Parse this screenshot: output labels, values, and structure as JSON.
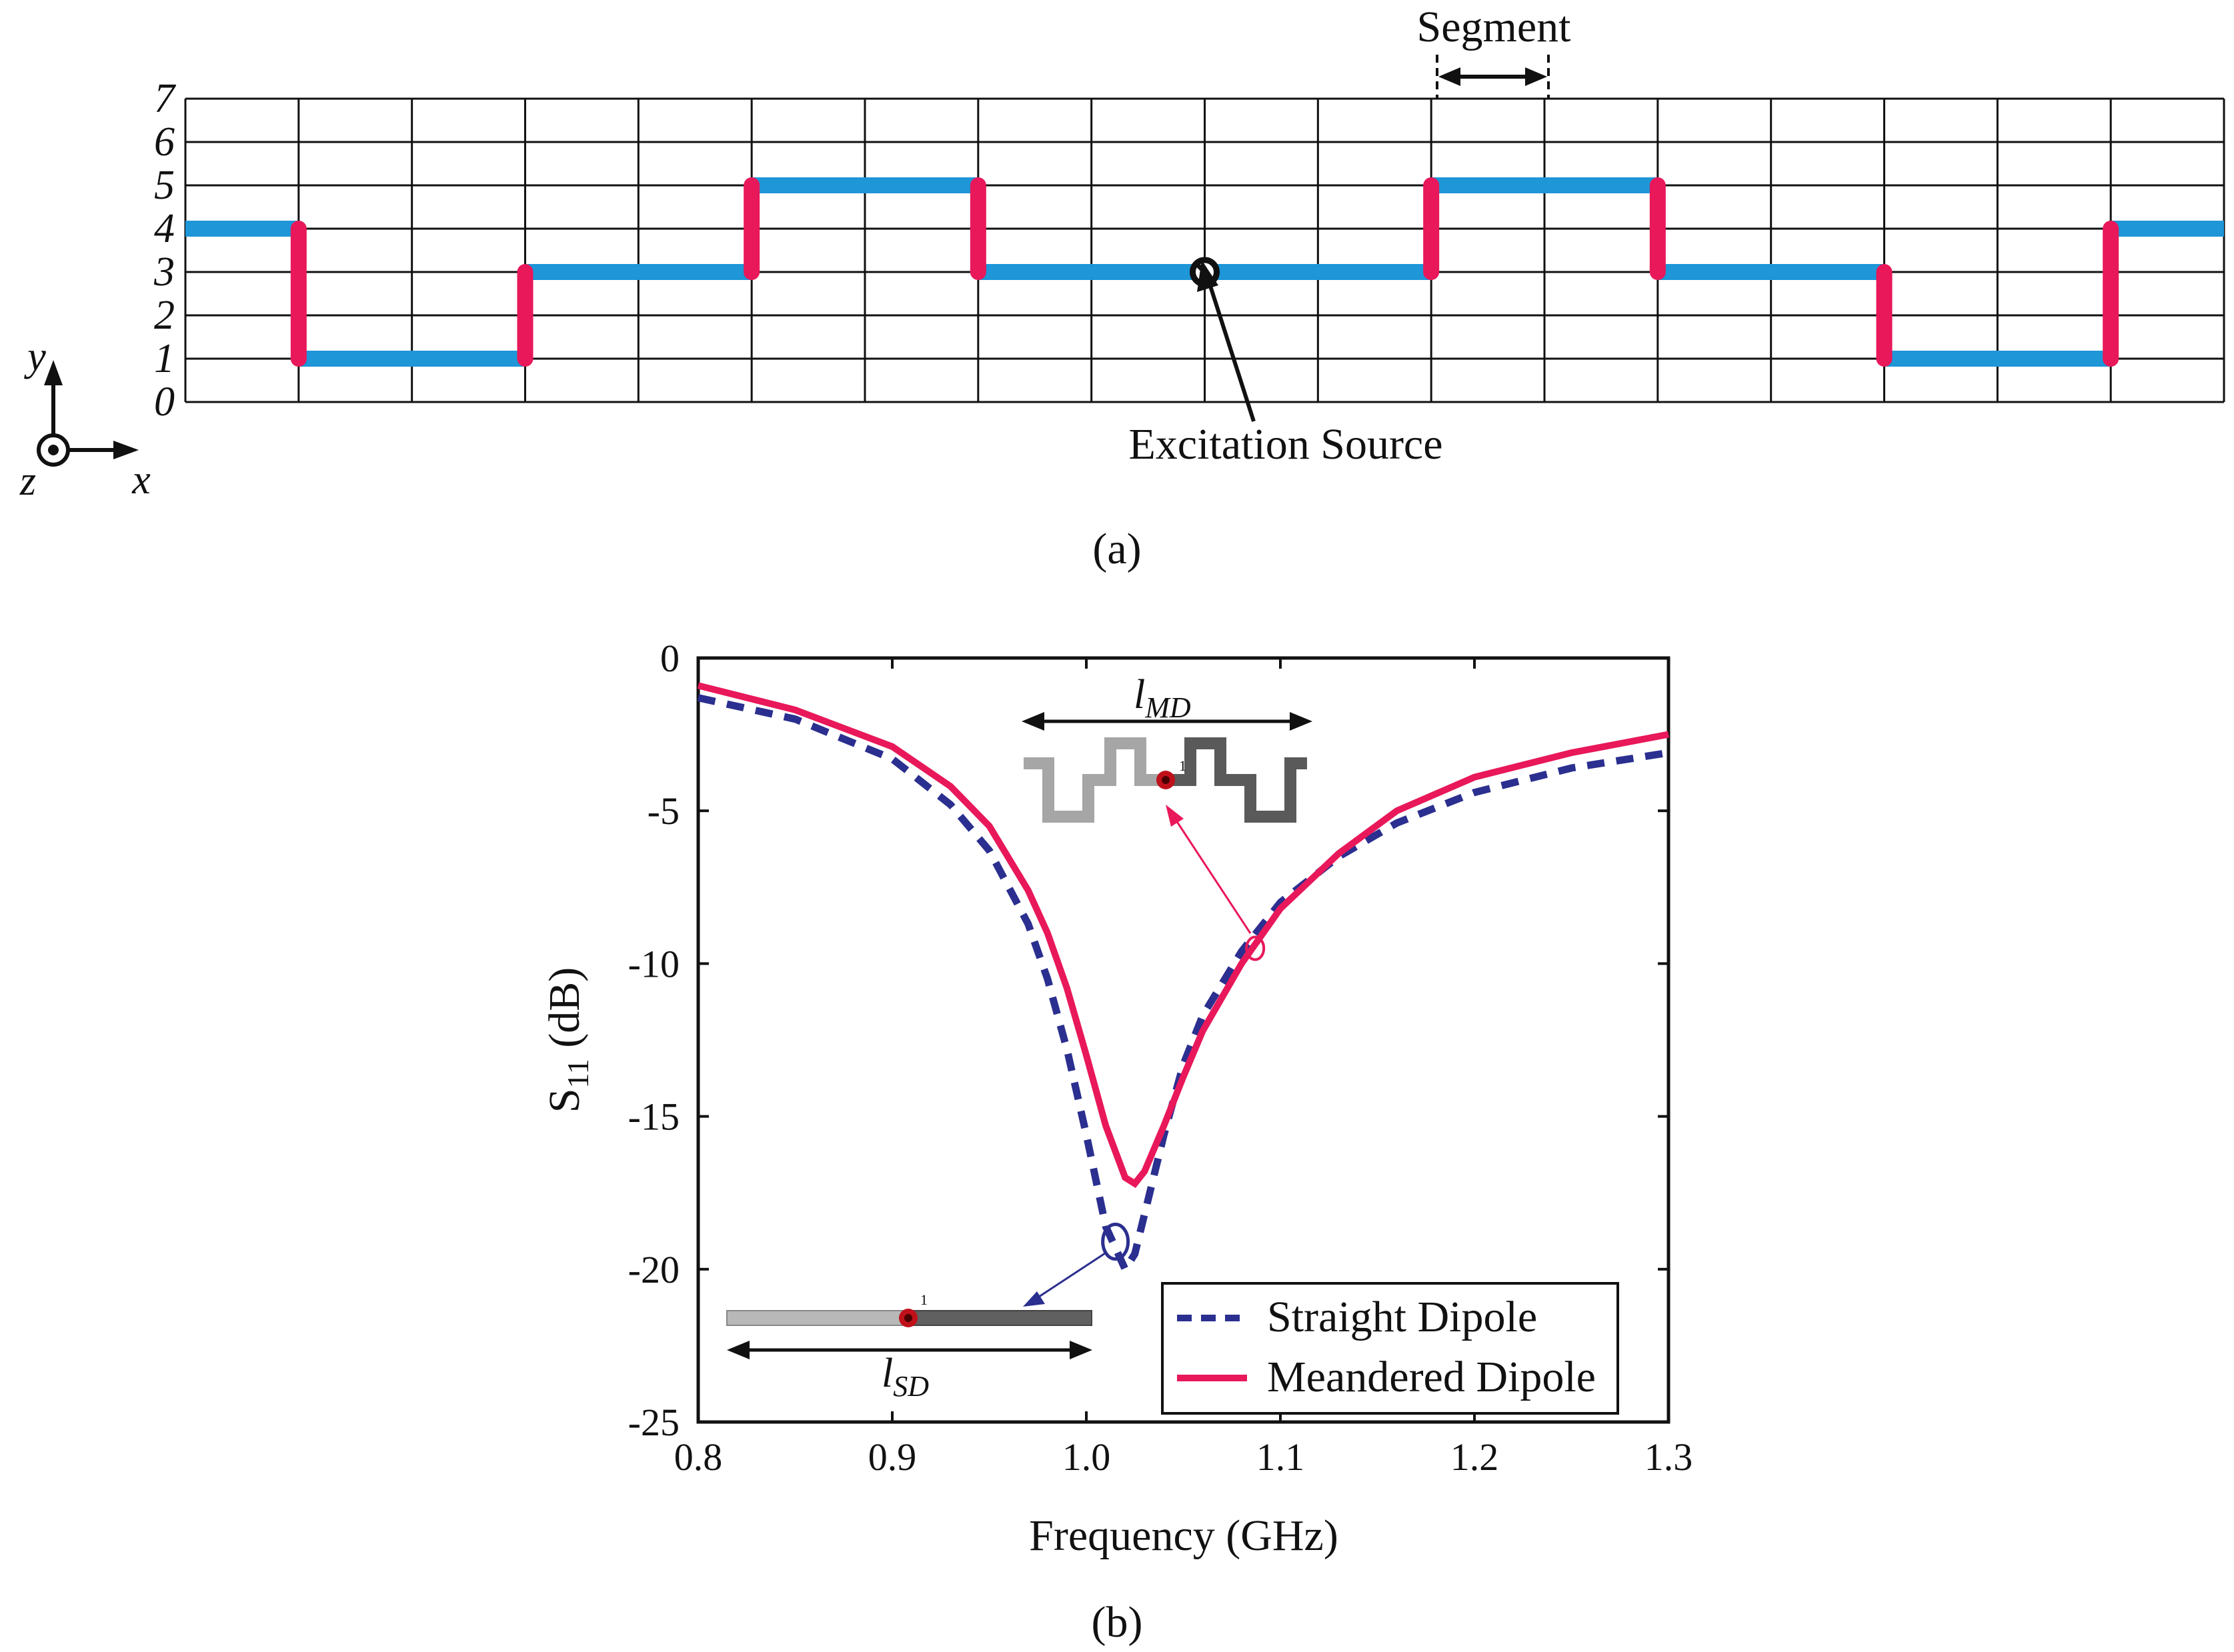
{
  "panel_a": {
    "caption": "(a)",
    "segment_label": "Segment",
    "source_label": "Excitation Source",
    "y_ticks": [
      "0",
      "1",
      "2",
      "3",
      "4",
      "5",
      "6",
      "7"
    ],
    "axis": {
      "y": "y",
      "x": "x",
      "z": "z"
    },
    "columns": 18,
    "rows": 7,
    "meander_path": [
      [
        0,
        4
      ],
      [
        1,
        4
      ],
      [
        1,
        1
      ],
      [
        3,
        1
      ],
      [
        3,
        3
      ],
      [
        5,
        3
      ],
      [
        5,
        5
      ],
      [
        7,
        5
      ],
      [
        7,
        3
      ],
      [
        11,
        3
      ],
      [
        11,
        5
      ],
      [
        13,
        5
      ],
      [
        13,
        3
      ],
      [
        15,
        3
      ],
      [
        15,
        1
      ],
      [
        17,
        1
      ],
      [
        17,
        4
      ],
      [
        18,
        4
      ]
    ],
    "source_position": [
      9,
      3
    ],
    "colors": {
      "horizontal": "#1e96d7",
      "vertical": "#e8185a",
      "grid": "#111111"
    }
  },
  "panel_b": {
    "caption": "(b)",
    "legend": [
      "Straight Dipole",
      "Meandered Dipole"
    ],
    "inset_md_label": "l",
    "inset_md_sub": "MD",
    "inset_sd_label": "l",
    "inset_sd_sub": "SD",
    "port_number": "1"
  },
  "chart_data": {
    "type": "line",
    "title": "",
    "xlabel": "Frequency (GHz)",
    "ylabel_main": "S",
    "ylabel_sub": "11",
    "ylabel_unit": " (dB)",
    "xlim": [
      0.8,
      1.3
    ],
    "ylim": [
      -25,
      0
    ],
    "x_ticks": [
      0.8,
      0.9,
      1.0,
      1.1,
      1.2,
      1.3
    ],
    "x_tick_labels": [
      "0.8",
      "0.9",
      "1.0",
      "1.1",
      "1.2",
      "1.3"
    ],
    "y_ticks": [
      0,
      -5,
      -10,
      -15,
      -20,
      -25
    ],
    "y_tick_labels": [
      "0",
      "-5",
      "-10",
      "-15",
      "-20",
      "-25"
    ],
    "series": [
      {
        "name": "Straight Dipole",
        "style": "dashed",
        "color": "#2b2f8f",
        "x": [
          0.8,
          0.85,
          0.9,
          0.93,
          0.95,
          0.97,
          0.98,
          0.99,
          1.0,
          1.01,
          1.02,
          1.025,
          1.03,
          1.04,
          1.05,
          1.06,
          1.08,
          1.1,
          1.13,
          1.16,
          1.2,
          1.25,
          1.3
        ],
        "values": [
          -1.3,
          -2.0,
          -3.3,
          -4.8,
          -6.3,
          -8.7,
          -10.5,
          -12.8,
          -15.6,
          -18.6,
          -20.0,
          -19.5,
          -18.2,
          -15.6,
          -13.3,
          -11.7,
          -9.6,
          -8.0,
          -6.5,
          -5.4,
          -4.4,
          -3.6,
          -3.1
        ]
      },
      {
        "name": "Meandered Dipole",
        "style": "solid",
        "color": "#e8185a",
        "x": [
          0.8,
          0.85,
          0.9,
          0.93,
          0.95,
          0.97,
          0.98,
          0.99,
          1.0,
          1.01,
          1.02,
          1.025,
          1.03,
          1.04,
          1.05,
          1.06,
          1.08,
          1.1,
          1.13,
          1.16,
          1.2,
          1.25,
          1.3
        ],
        "values": [
          -0.9,
          -1.7,
          -2.9,
          -4.2,
          -5.5,
          -7.6,
          -9.0,
          -10.8,
          -13.0,
          -15.3,
          -17.0,
          -17.2,
          -16.8,
          -15.3,
          -13.7,
          -12.2,
          -10.0,
          -8.2,
          -6.4,
          -5.0,
          -3.9,
          -3.1,
          -2.5
        ]
      }
    ],
    "annotations": [
      {
        "text": "Meandered Dipole at about 1.087 GHz, -9.5 dB",
        "x": 1.087,
        "y": -9.5
      },
      {
        "text": "Straight Dipole at about 1.015 GHz, -19.1 dB",
        "x": 1.015,
        "y": -19.1
      }
    ],
    "legend_position": "bottom-right",
    "grid": false
  }
}
